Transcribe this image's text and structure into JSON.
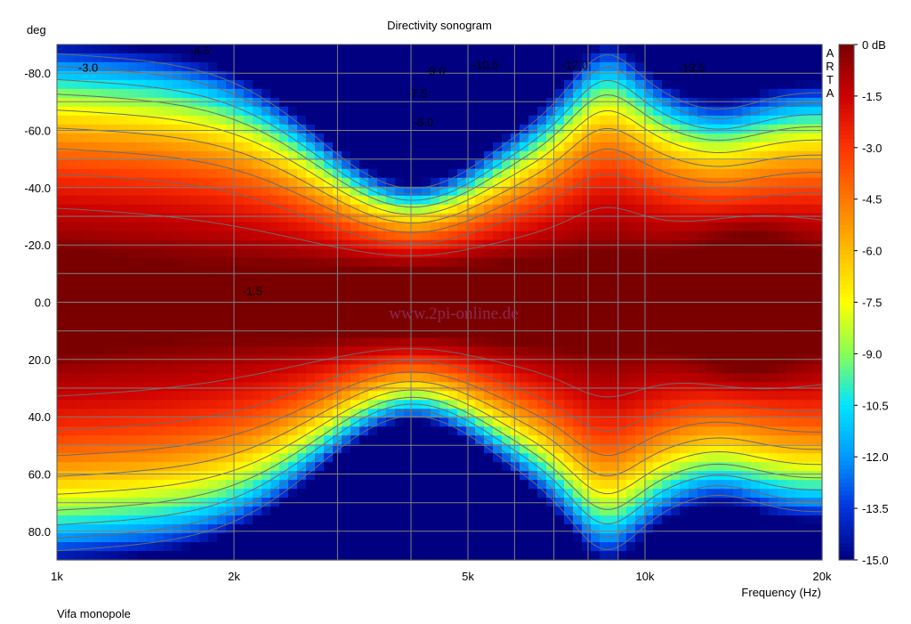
{
  "chart_data": {
    "type": "heatmap",
    "title": "Directivity sonogram",
    "xlabel": "Frequency (Hz)",
    "ylabel": "deg",
    "x_scale": "log",
    "xlim": [
      1000,
      20000
    ],
    "ylim": [
      -90,
      90
    ],
    "y_inverted": true,
    "x_ticks": [
      {
        "value": 1000,
        "label": "1k"
      },
      {
        "value": 2000,
        "label": "2k"
      },
      {
        "value": 5000,
        "label": "5k"
      },
      {
        "value": 10000,
        "label": "10k"
      },
      {
        "value": 20000,
        "label": "20k"
      }
    ],
    "y_ticks": [
      {
        "value": -80,
        "label": "-80.0"
      },
      {
        "value": -60,
        "label": "-60.0"
      },
      {
        "value": -40,
        "label": "-40.0"
      },
      {
        "value": -20,
        "label": "-20.0"
      },
      {
        "value": 0,
        "label": "0.0"
      },
      {
        "value": 20,
        "label": "20.0"
      },
      {
        "value": 40,
        "label": "40.0"
      },
      {
        "value": 60,
        "label": "60.0"
      },
      {
        "value": 80,
        "label": "80.0"
      }
    ],
    "colorbar": {
      "range": [
        -15,
        0
      ],
      "labels": [
        "0 dB",
        "-1.5",
        "-3.0",
        "-4.5",
        "-6.0",
        "-7.5",
        "-9.0",
        "-10.5",
        "-12.0",
        "-13.5",
        "-15.0"
      ],
      "colors": [
        "#7a0000",
        "#cc0000",
        "#ff3300",
        "#ff7700",
        "#ffbb00",
        "#ffff00",
        "#88ff55",
        "#00e5ff",
        "#0099ff",
        "#0033dd",
        "#000080"
      ]
    },
    "contour_levels": [
      -1.5,
      -3.0,
      -4.5,
      -6.0,
      -7.5,
      -9.0,
      -10.5,
      -12.0,
      -13.5
    ],
    "contour_labels": [
      {
        "text": "-3.0",
        "f": 1130,
        "deg": -82
      },
      {
        "text": "-4.5",
        "f": 1750,
        "deg": -88
      },
      {
        "text": "-9.0",
        "f": 4400,
        "deg": -81
      },
      {
        "text": "-10.5",
        "f": 5350,
        "deg": -83
      },
      {
        "text": "-12.0",
        "f": 7600,
        "deg": -83
      },
      {
        "text": "-13.5",
        "f": 12000,
        "deg": -82
      },
      {
        "text": "-7.5",
        "f": 4100,
        "deg": -73
      },
      {
        "text": "-6.0",
        "f": 4200,
        "deg": -63
      },
      {
        "text": "-1.5",
        "f": 2150,
        "deg": -4
      }
    ],
    "watermark": "www.2pi-online.de",
    "note": "Vifa monopole",
    "brand_letters": [
      "A",
      "R",
      "T",
      "A"
    ]
  }
}
